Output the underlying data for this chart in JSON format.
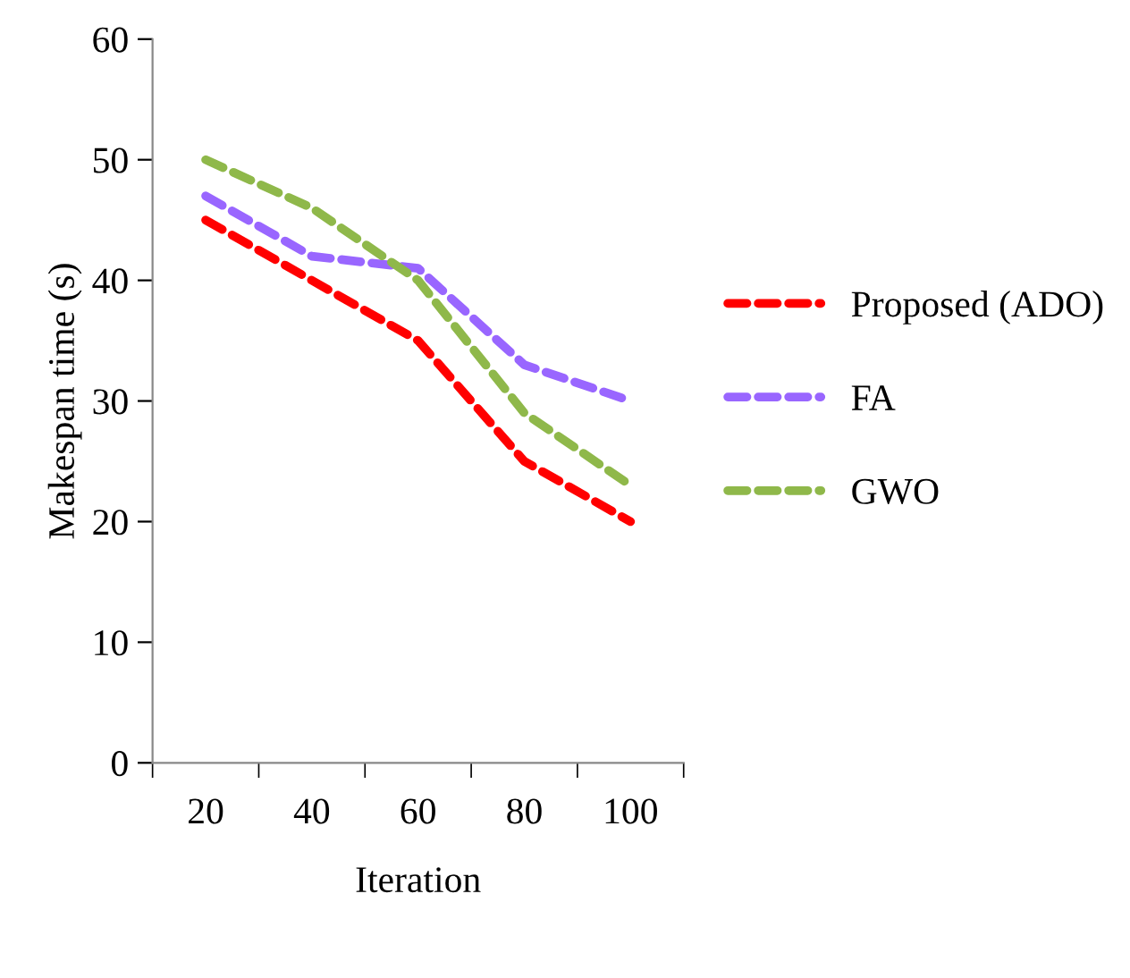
{
  "chart_data": {
    "type": "line",
    "xlabel": "Iteration",
    "ylabel": "Makespan time (s)",
    "categories": [
      "20",
      "40",
      "60",
      "80",
      "100"
    ],
    "series": [
      {
        "name": "Proposed (ADO)",
        "color": "#ff0000",
        "values": [
          45,
          40,
          35,
          25,
          20
        ]
      },
      {
        "name": "FA",
        "color": "#9966ff",
        "values": [
          47,
          42,
          41,
          33,
          30
        ]
      },
      {
        "name": "GWO",
        "color": "#8fb84a",
        "values": [
          50,
          46,
          40,
          29,
          23
        ]
      }
    ],
    "ylim": [
      0,
      60
    ],
    "yticks": [
      0,
      10,
      20,
      30,
      40,
      50,
      60
    ],
    "grid": false,
    "legend": "right",
    "line_style": "dashed",
    "marker": "none"
  }
}
